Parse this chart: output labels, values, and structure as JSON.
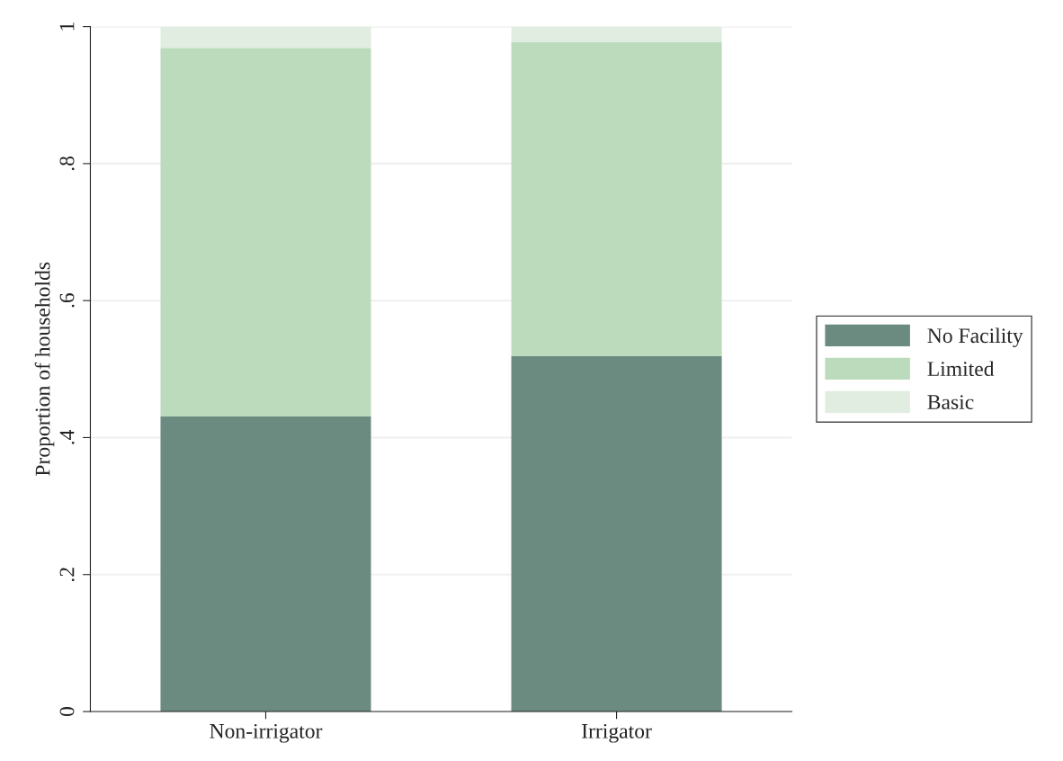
{
  "chart_data": {
    "type": "bar",
    "stacked": true,
    "ylabel": "Proportion of households",
    "categories": [
      "Non-irrigator",
      "Irrigator"
    ],
    "series": [
      {
        "name": "No Facility",
        "color": "#6b8b80",
        "values": [
          0.431,
          0.519
        ]
      },
      {
        "name": "Limited",
        "color": "#bcdabc",
        "values": [
          0.538,
          0.458
        ]
      },
      {
        "name": "Basic",
        "color": "#e1ede1",
        "values": [
          0.031,
          0.023
        ]
      }
    ],
    "ylim": [
      0,
      1
    ],
    "yticks": [
      {
        "value": 0,
        "label": "0"
      },
      {
        "value": 0.2,
        "label": ".2"
      },
      {
        "value": 0.4,
        "label": ".4"
      },
      {
        "value": 0.6,
        "label": ".6"
      },
      {
        "value": 0.8,
        "label": ".8"
      },
      1
    ],
    "grid": "y",
    "legend": "right"
  }
}
